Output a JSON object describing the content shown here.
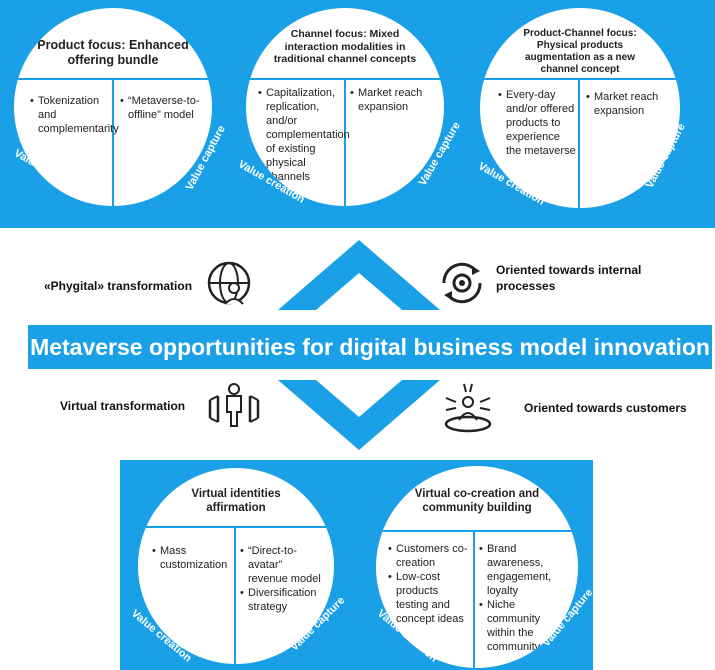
{
  "top_circles": [
    {
      "title": "Product focus: Enhanced offering bundle",
      "creation": [
        "Tokenization and complementarity"
      ],
      "capture": [
        "“Metaverse-to-offline” model"
      ],
      "creation_label": "Value creation",
      "capture_label": "Value capture"
    },
    {
      "title": "Channel focus: Mixed interaction modalities in traditional channel concepts",
      "creation": [
        "Capitalization, replication, and/or complementation of existing physical channels"
      ],
      "capture": [
        "Market reach expansion"
      ],
      "creation_label": "Value creation",
      "capture_label": "Value capture"
    },
    {
      "title": "Product-Channel focus: Physical products augmentation as a new channel concept",
      "creation": [
        "Every-day and/or offered products to experience the metaverse"
      ],
      "capture": [
        "Market reach expansion"
      ],
      "creation_label": "Value creation",
      "capture_label": "Value capture"
    }
  ],
  "middle": {
    "phygital": "«Phygital» transformation",
    "internal": "Oriented towards internal processes",
    "banner": "Metaverse opportunities for digital business model innovation",
    "virtual": "Virtual transformation",
    "customers": "Oriented towards customers"
  },
  "bottom_circles": [
    {
      "title": "Virtual identities affirmation",
      "creation": [
        "Mass customization"
      ],
      "capture": [
        "“Direct-to-avatar” revenue model",
        "Diversification strategy"
      ],
      "creation_label": "Value creation",
      "capture_label": "Value capture"
    },
    {
      "title": "Virtual co-creation and community building",
      "creation": [
        "Customers co-creation",
        "Low-cost products testing and concept ideas"
      ],
      "capture": [
        "Brand awareness, engagement, loyalty",
        "Niche community within the community"
      ],
      "creation_label": "Value creation",
      "capture_label": "Value capture"
    }
  ],
  "colors": {
    "accent": "#1aa0e6",
    "text": "#1a1a1a"
  },
  "icons": [
    "globe-person-icon",
    "gear-cycle-icon",
    "group-people-icon",
    "customer-target-icon",
    "chevron-up-icon",
    "chevron-down-icon"
  ]
}
